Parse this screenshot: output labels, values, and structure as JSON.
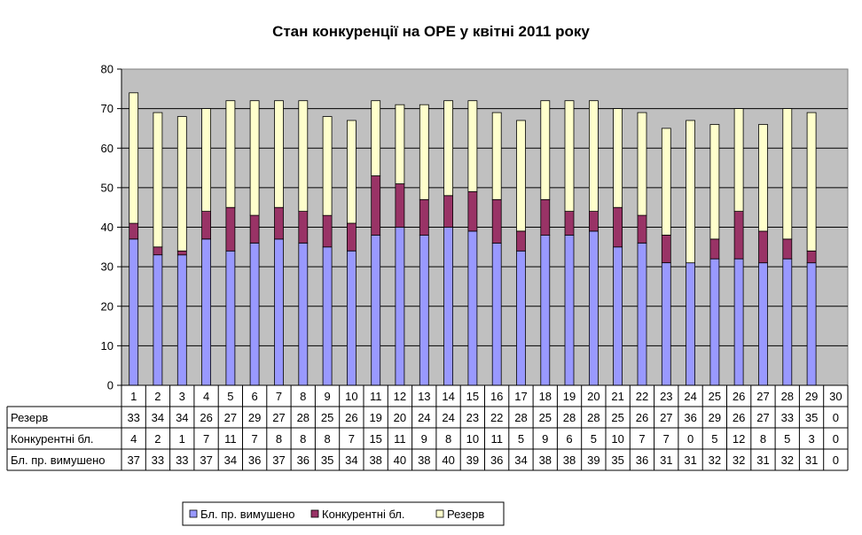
{
  "chart_data": {
    "type": "bar",
    "stacked": true,
    "title": "Стан конкуренції на ОРЕ  у квітні 2011 року",
    "xlabel": "",
    "ylabel": "",
    "ylim": [
      0,
      80
    ],
    "yticks": [
      0,
      10,
      20,
      30,
      40,
      50,
      60,
      70,
      80
    ],
    "grid": true,
    "legend_position": "bottom",
    "categories": [
      "1",
      "2",
      "3",
      "4",
      "5",
      "6",
      "7",
      "8",
      "9",
      "10",
      "11",
      "12",
      "13",
      "14",
      "15",
      "16",
      "17",
      "18",
      "19",
      "20",
      "21",
      "22",
      "23",
      "24",
      "25",
      "26",
      "27",
      "28",
      "29",
      "30"
    ],
    "series": [
      {
        "name": "Бл. пр. вимушено",
        "color": "#9999ff",
        "values": [
          37,
          33,
          33,
          37,
          34,
          36,
          37,
          36,
          35,
          34,
          38,
          40,
          38,
          40,
          39,
          36,
          34,
          38,
          38,
          39,
          35,
          36,
          31,
          31,
          32,
          32,
          31,
          32,
          31,
          0
        ]
      },
      {
        "name": "Конкурентні бл.",
        "color": "#993366",
        "values": [
          4,
          2,
          1,
          7,
          11,
          7,
          8,
          8,
          8,
          7,
          15,
          11,
          9,
          8,
          10,
          11,
          5,
          9,
          6,
          5,
          10,
          7,
          7,
          0,
          5,
          12,
          8,
          5,
          3,
          0
        ]
      },
      {
        "name": "Резерв",
        "color": "#ffffcc",
        "values": [
          33,
          34,
          34,
          26,
          27,
          29,
          27,
          28,
          25,
          26,
          19,
          20,
          24,
          24,
          23,
          22,
          28,
          25,
          28,
          28,
          25,
          26,
          27,
          36,
          29,
          26,
          27,
          33,
          35,
          0
        ]
      }
    ],
    "table_row_order": [
      2,
      1,
      0
    ],
    "plot_background": "#c0c0c0"
  }
}
